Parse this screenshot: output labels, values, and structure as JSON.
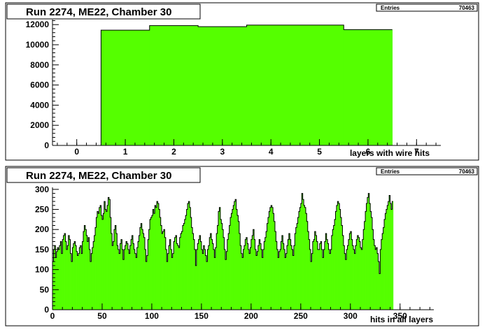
{
  "chart_data": [
    {
      "type": "bar",
      "title": "Run 2274, ME22, Chamber 30",
      "stats": {
        "label": "Entries",
        "value": "70463"
      },
      "xlabel": "layers with wire hits",
      "ylabel": "",
      "xlim": [
        -0.5,
        7.5
      ],
      "ylim": [
        0,
        12500
      ],
      "x_ticks": [
        0,
        1,
        2,
        3,
        4,
        5,
        6,
        7
      ],
      "y_ticks": [
        0,
        2000,
        4000,
        6000,
        8000,
        10000,
        12000
      ],
      "bin_width": 1,
      "bins": [
        0,
        1,
        2,
        3,
        4,
        5,
        6
      ],
      "values": [
        0,
        11450,
        11900,
        11800,
        11950,
        11950,
        11500
      ],
      "fill_color": "#55ff00"
    },
    {
      "type": "bar",
      "title": "Run 2274, ME22, Chamber 30",
      "stats": {
        "label": "Entries",
        "value": "70463"
      },
      "xlabel": "hits in all layers",
      "ylabel": "",
      "xlim": [
        0,
        384
      ],
      "ylim": [
        0,
        305
      ],
      "x_ticks": [
        0,
        50,
        100,
        150,
        200,
        250,
        300,
        350
      ],
      "y_ticks": [
        0,
        50,
        100,
        150,
        200,
        250,
        300
      ],
      "bin_width": 1,
      "values": [
        120,
        150,
        160,
        130,
        145,
        155,
        150,
        160,
        170,
        140,
        175,
        185,
        190,
        170,
        150,
        160,
        185,
        175,
        140,
        120,
        155,
        165,
        170,
        160,
        145,
        135,
        140,
        155,
        160,
        140,
        170,
        195,
        210,
        200,
        185,
        170,
        180,
        150,
        120,
        140,
        155,
        170,
        185,
        205,
        230,
        245,
        240,
        255,
        260,
        235,
        225,
        240,
        270,
        250,
        245,
        260,
        280,
        275,
        230,
        190,
        160,
        170,
        200,
        210,
        190,
        160,
        150,
        140,
        165,
        175,
        150,
        125,
        150,
        160,
        170,
        165,
        150,
        140,
        160,
        175,
        185,
        165,
        150,
        140,
        130,
        155,
        170,
        185,
        205,
        215,
        200,
        190,
        180,
        150,
        120,
        135,
        175,
        200,
        225,
        230,
        235,
        250,
        240,
        260,
        255,
        270,
        265,
        250,
        230,
        210,
        190,
        195,
        200,
        180,
        150,
        120,
        140,
        160,
        175,
        150,
        130,
        140,
        170,
        180,
        185,
        165,
        160,
        155,
        180,
        190,
        195,
        210,
        215,
        225,
        235,
        250,
        265,
        270,
        255,
        230,
        205,
        190,
        175,
        150,
        110,
        150,
        165,
        175,
        185,
        170,
        150,
        140,
        160,
        150,
        135,
        120,
        150,
        160,
        180,
        190,
        175,
        165,
        150,
        130,
        155,
        190,
        210,
        245,
        255,
        225,
        215,
        200,
        180,
        150,
        125,
        145,
        175,
        190,
        210,
        230,
        240,
        250,
        260,
        270,
        275,
        250,
        235,
        220,
        190,
        160,
        140,
        130,
        150,
        160,
        175,
        180,
        165,
        150,
        140,
        155,
        175,
        185,
        200,
        175,
        150,
        135,
        145,
        160,
        175,
        165,
        150,
        130,
        150,
        170,
        180,
        195,
        215,
        230,
        245,
        255,
        260,
        255,
        240,
        220,
        195,
        170,
        150,
        130,
        145,
        150,
        170,
        185,
        165,
        150,
        130,
        140,
        160,
        175,
        190,
        175,
        160,
        150,
        135,
        160,
        190,
        205,
        215,
        230,
        245,
        255,
        265,
        290,
        275,
        260,
        255,
        240,
        220,
        195,
        175,
        150,
        120,
        140,
        170,
        175,
        195,
        185,
        170,
        150,
        150,
        165,
        170,
        150,
        130,
        150,
        170,
        190,
        175,
        165,
        150,
        140,
        150,
        185,
        200,
        210,
        225,
        245,
        260,
        270,
        265,
        250,
        230,
        210,
        185,
        160,
        140,
        125,
        150,
        160,
        175,
        190,
        195,
        175,
        160,
        150,
        140,
        160,
        175,
        185,
        180,
        170,
        155,
        150,
        175,
        200,
        220,
        245,
        265,
        280,
        290,
        265,
        245,
        230,
        200,
        175,
        160,
        150,
        155,
        140,
        120,
        90,
        150,
        175,
        190,
        205,
        225,
        240,
        250,
        260,
        270,
        285,
        265,
        250,
        270
      ],
      "fill_color": "#55ff00"
    }
  ]
}
